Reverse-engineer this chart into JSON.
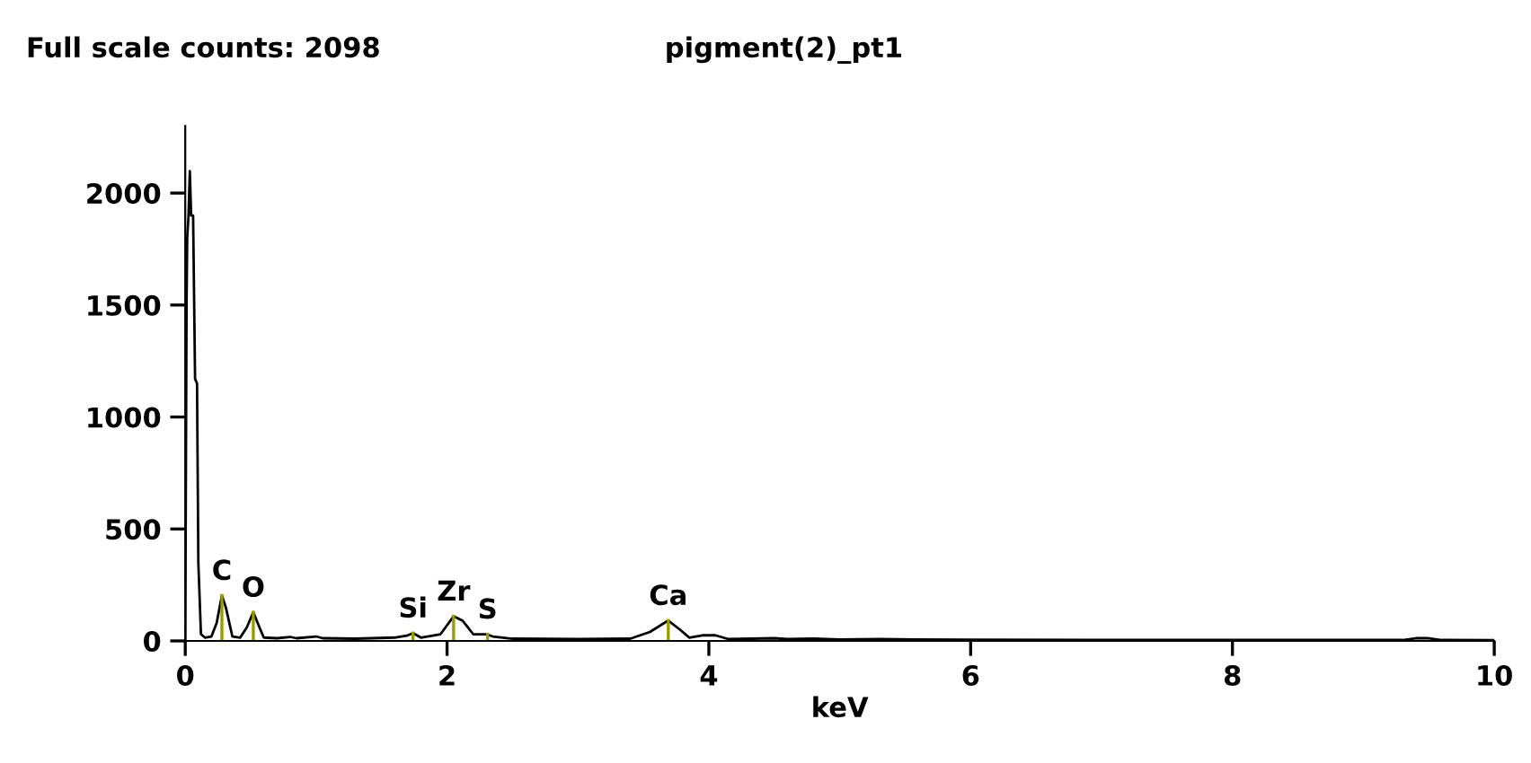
{
  "chart_data": {
    "type": "line",
    "title": "pigment(2)_pt1",
    "xlabel": "keV",
    "annotations": [
      "Full scale counts: 2098",
      {
        "text": "C",
        "x": 0.28,
        "y": 203
      },
      {
        "text": "O",
        "x": 0.52,
        "y": 128
      },
      {
        "text": "Si",
        "x": 1.74,
        "y": 35
      },
      {
        "text": "Zr",
        "x": 2.05,
        "y": 110
      },
      {
        "text": "S",
        "x": 2.31,
        "y": 30
      },
      {
        "text": "Ca",
        "x": 3.69,
        "y": 91
      }
    ],
    "series": [
      {
        "color": "#000000",
        "x": [
          0,
          0.01,
          0.015,
          0.025,
          0.035,
          0.045,
          0.06,
          0.075,
          0.09,
          0.1,
          0.12,
          0.15,
          0.2,
          0.24,
          0.28,
          0.31,
          0.36,
          0.42,
          0.47,
          0.52,
          0.56,
          0.6,
          0.7,
          0.8,
          0.85,
          1.0,
          1.05,
          1.3,
          1.6,
          1.7,
          1.74,
          1.8,
          1.95,
          2.05,
          2.12,
          2.2,
          2.3,
          2.35,
          2.5,
          3.0,
          3.4,
          3.55,
          3.69,
          3.78,
          3.85,
          3.95,
          4.05,
          4.15,
          4.5,
          4.6,
          4.8,
          5.0,
          5.3,
          6.0,
          7.0,
          8.0,
          9.3,
          9.4,
          9.5,
          9.6,
          10
        ],
        "values": [
          0,
          1500,
          1800,
          1900,
          2098,
          1900,
          1900,
          1170,
          1150,
          350,
          30,
          15,
          20,
          80,
          203,
          150,
          20,
          15,
          60,
          128,
          70,
          15,
          12,
          18,
          12,
          20,
          12,
          10,
          15,
          25,
          35,
          15,
          30,
          110,
          90,
          30,
          30,
          20,
          10,
          8,
          10,
          40,
          91,
          50,
          15,
          25,
          25,
          8,
          12,
          8,
          10,
          6,
          8,
          5,
          4,
          4,
          4,
          12,
          12,
          4,
          3
        ]
      }
    ],
    "xlim": [
      0,
      10
    ],
    "ylim": [
      0,
      2300
    ],
    "xticks": [
      0,
      2,
      4,
      6,
      8,
      10
    ],
    "yticks": [
      0,
      500,
      1000,
      1500,
      2000
    ],
    "grid": false,
    "legend": false,
    "marker": "none",
    "line_style": "solid"
  }
}
